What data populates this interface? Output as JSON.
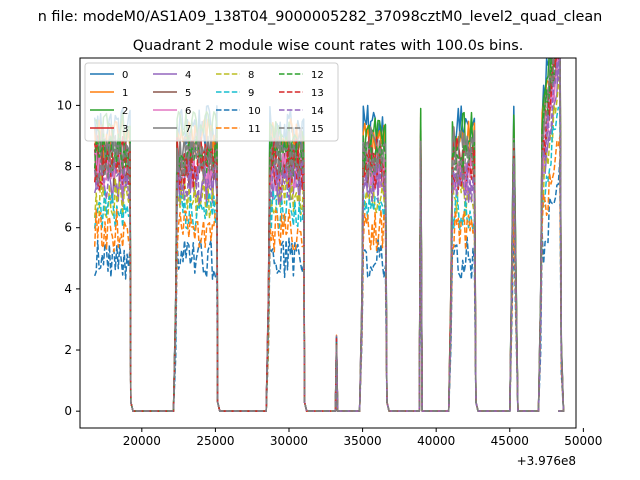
{
  "chart_data": {
    "type": "line",
    "suptitle": "n file: modeM0/AS1A09_138T04_9000005282_37098cztM0_level2_quad_clean",
    "title": "Quadrant 2 module wise count rates with 100.0s bins.",
    "xlabel": "",
    "ylabel": "",
    "x_offset_label": "+3.976e8",
    "xlim": [
      15800,
      49500
    ],
    "ylim": [
      -0.55,
      11.55
    ],
    "xticks": [
      20000,
      25000,
      30000,
      35000,
      40000,
      45000,
      50000
    ],
    "xtick_labels": [
      "20000",
      "25000",
      "30000",
      "35000",
      "40000",
      "45000",
      "50000"
    ],
    "yticks": [
      0,
      2,
      4,
      6,
      8,
      10
    ],
    "ytick_labels": [
      "0",
      "2",
      "4",
      "6",
      "8",
      "10"
    ],
    "grid": false,
    "legend_position": "upper-left",
    "legend_columns": 4,
    "on_intervals": [
      [
        16700,
        19250
      ],
      [
        22300,
        25150
      ],
      [
        28600,
        31050
      ],
      [
        33150,
        33300
      ],
      [
        34950,
        36650
      ],
      [
        38850,
        39050
      ],
      [
        41000,
        42700
      ],
      [
        45000,
        45550
      ],
      [
        47100,
        48500
      ]
    ],
    "spike_level_2nd_orbit_end": 9.4,
    "series": [
      {
        "name": "0",
        "color": "#1f77b4",
        "style": "solid",
        "level": 9.3
      },
      {
        "name": "1",
        "color": "#ff7f0e",
        "style": "solid",
        "level": 8.9
      },
      {
        "name": "2",
        "color": "#2ca02c",
        "style": "solid",
        "level": 9.1
      },
      {
        "name": "3",
        "color": "#d62728",
        "style": "solid",
        "level": 8.3
      },
      {
        "name": "4",
        "color": "#9467bd",
        "style": "solid",
        "level": 7.4
      },
      {
        "name": "5",
        "color": "#8c564b",
        "style": "solid",
        "level": 8.0
      },
      {
        "name": "6",
        "color": "#e377c2",
        "style": "solid",
        "level": 7.8
      },
      {
        "name": "7",
        "color": "#7f7f7f",
        "style": "solid",
        "level": 8.6
      },
      {
        "name": "8",
        "color": "#bcbd22",
        "style": "dashed",
        "level": 7.0
      },
      {
        "name": "9",
        "color": "#17becf",
        "style": "dashed",
        "level": 6.6
      },
      {
        "name": "10",
        "color": "#1f77b4",
        "style": "dashed",
        "level": 5.0
      },
      {
        "name": "11",
        "color": "#ff7f0e",
        "style": "dashed",
        "level": 5.9
      },
      {
        "name": "12",
        "color": "#2ca02c",
        "style": "dashed",
        "level": 8.4
      },
      {
        "name": "13",
        "color": "#d62728",
        "style": "dashed",
        "level": 7.9
      },
      {
        "name": "14",
        "color": "#9467bd",
        "style": "dashed",
        "level": 7.5
      },
      {
        "name": "15",
        "color": "#7f7f7f",
        "style": "dashed",
        "level": 8.2
      }
    ]
  }
}
